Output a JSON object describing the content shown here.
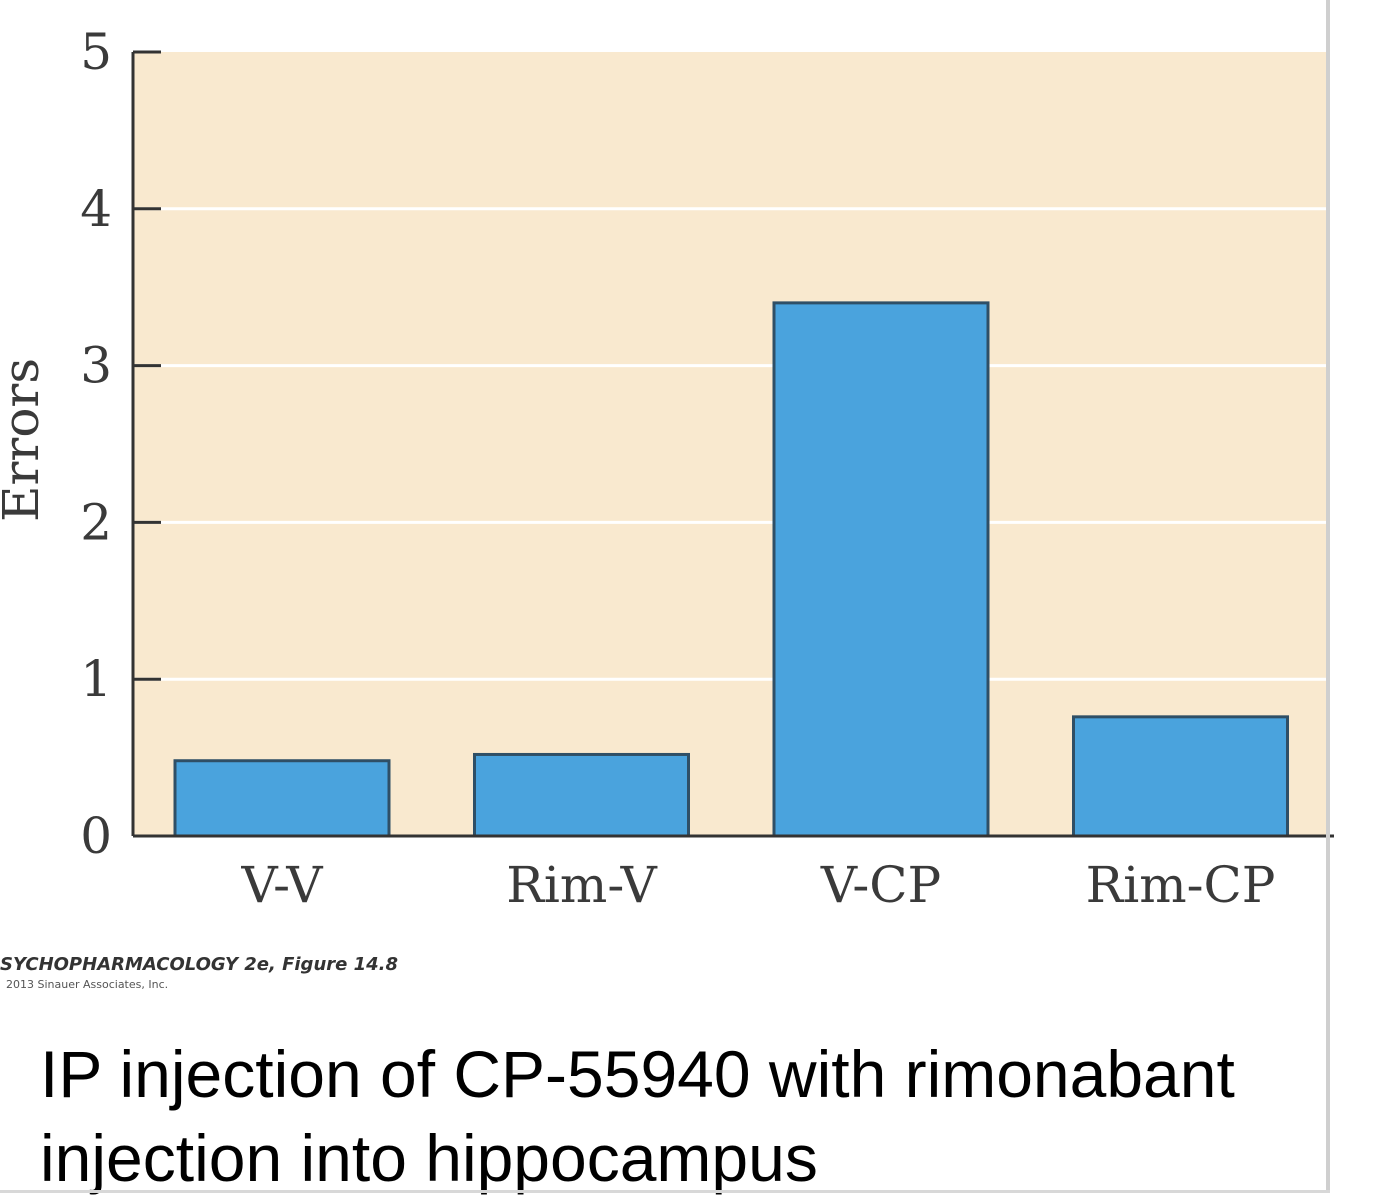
{
  "chart_data": {
    "type": "bar",
    "ylabel": "Errors",
    "xlabel": "",
    "ylim": [
      0,
      5
    ],
    "yticks": [
      0,
      1,
      2,
      3,
      4,
      5
    ],
    "grid": true,
    "categories": [
      "V-V",
      "Rim-V",
      "V-CP",
      "Rim-CP"
    ],
    "values": [
      0.48,
      0.52,
      3.4,
      0.76
    ],
    "colors": {
      "bar": "#4aa3dd",
      "bar_edge": "#2f4f66",
      "plot_bg": "#f9e9cf",
      "grid": "#ffffff",
      "axis": "#333333"
    }
  },
  "credit": {
    "line1": "SYCHOPHARMACOLOGY 2e, Figure 14.8",
    "line2": "2013 Sinauer Associates, Inc."
  },
  "caption": {
    "line1": "IP injection of CP-55940 with rimonabant",
    "line2": "injection into hippocampus"
  }
}
